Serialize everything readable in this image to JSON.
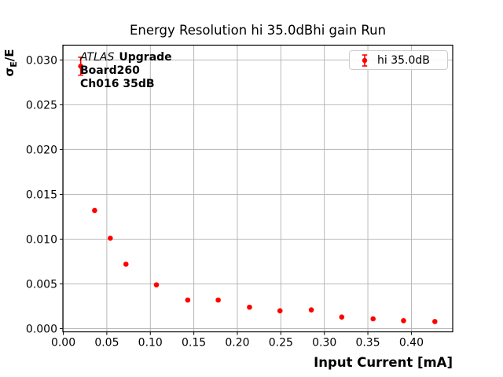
{
  "chart_data": {
    "type": "scatter",
    "title": "Energy Resolution hi 35.0dBhi gain Run",
    "xlabel": "Input Current [mA]",
    "ylabel": "σE/E",
    "ylabel_parts": {
      "sigma": "σ",
      "sub": "E",
      "rest": "/E"
    },
    "xlim": [
      -0.0005,
      0.4475
    ],
    "ylim": [
      -0.00035,
      0.03165
    ],
    "grid": true,
    "grid_color": "#b0b0b0",
    "x_ticks": {
      "values": [
        0.0,
        0.05,
        0.1,
        0.15,
        0.2,
        0.25,
        0.3,
        0.35,
        0.4
      ],
      "labels": [
        "0.00",
        "0.05",
        "0.10",
        "0.15",
        "0.20",
        "0.25",
        "0.30",
        "0.35",
        "0.40"
      ]
    },
    "y_ticks": {
      "values": [
        0.0,
        0.005,
        0.01,
        0.015,
        0.02,
        0.025,
        0.03
      ],
      "labels": [
        "0.000",
        "0.005",
        "0.010",
        "0.015",
        "0.020",
        "0.025",
        "0.030"
      ]
    },
    "series": [
      {
        "name": "hi 35.0dB",
        "color": "#ff0000",
        "marker": "circle-with-errorbar",
        "x": [
          0.02,
          0.036,
          0.054,
          0.072,
          0.107,
          0.143,
          0.178,
          0.214,
          0.249,
          0.285,
          0.32,
          0.356,
          0.391,
          0.427
        ],
        "y": [
          0.0293,
          0.0132,
          0.0101,
          0.0072,
          0.0049,
          0.0032,
          0.0032,
          0.0024,
          0.002,
          0.0021,
          0.0013,
          0.0011,
          0.0009,
          0.0008
        ],
        "yerr": [
          0.001,
          0,
          0,
          0,
          0,
          0,
          0,
          0,
          0,
          0,
          0,
          0,
          0,
          0
        ]
      }
    ],
    "legend": {
      "position": "upper right",
      "label": "hi 35.0dB"
    },
    "annotation": {
      "line1_italic": "ATLAS",
      "line1_bold": "Upgrade",
      "line2": "Board260",
      "line3": "Ch016 35dB"
    }
  }
}
